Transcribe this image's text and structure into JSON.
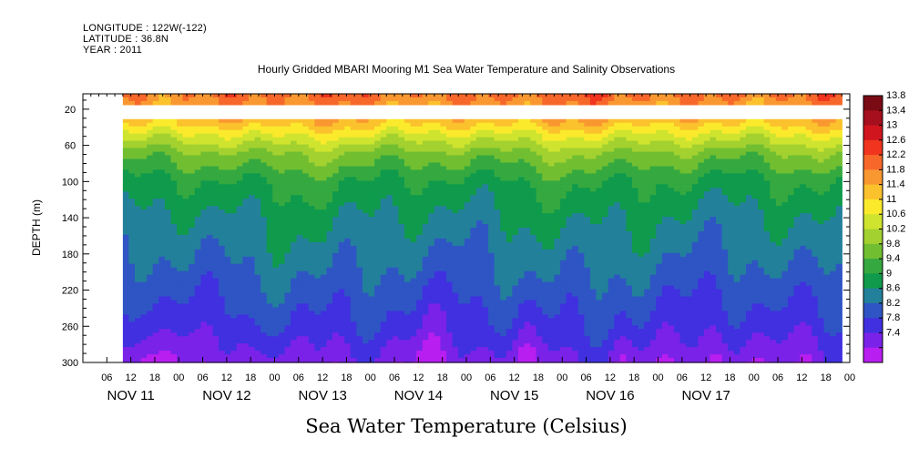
{
  "header": {
    "longitude": "LONGITUDE : 122W(-122)",
    "latitude": "LATITUDE : 36.8N",
    "year": "YEAR : 2011"
  },
  "chart_data": {
    "type": "heatmap",
    "title": "Hourly Gridded MBARI Mooring M1 Sea Water Temperature and Salinity Observations",
    "xlabel": "Sea Water Temperature (Celsius)",
    "ylabel": "DEPTH (m)",
    "y_ticks": [
      "20",
      "60",
      "100",
      "140",
      "180",
      "220",
      "260",
      "300"
    ],
    "y_tick_values": [
      20,
      60,
      100,
      140,
      180,
      220,
      260,
      300
    ],
    "ylim": [
      300,
      3
    ],
    "x_hour_ticks": [
      "06",
      "12",
      "18",
      "00",
      "06",
      "12",
      "18",
      "00",
      "06",
      "12",
      "18",
      "00",
      "06",
      "12",
      "18",
      "00",
      "06",
      "12",
      "18",
      "00",
      "06",
      "12",
      "18",
      "00",
      "06",
      "12",
      "18",
      "00",
      "06",
      "12",
      "18",
      "00"
    ],
    "x_day_labels": [
      "NOV 11",
      "NOV 12",
      "NOV 13",
      "NOV 14",
      "NOV 15",
      "NOV 16",
      "NOV 17"
    ],
    "x_range_hours_from_nov11_00": [
      0,
      192
    ],
    "data_start_hour": 10,
    "data_end_hour": 190,
    "depth_gap_m": [
      13,
      33
    ],
    "colorbar": {
      "levels": [
        "13.8",
        "13.4",
        "13",
        "12.6",
        "12.2",
        "11.8",
        "11.4",
        "11",
        "10.6",
        "10.2",
        "9.8",
        "9.4",
        "9",
        "8.6",
        "8.2",
        "7.8",
        "7.4"
      ],
      "colors": [
        "#7a0a14",
        "#a50f1e",
        "#d0151e",
        "#f0341e",
        "#f7672a",
        "#f99830",
        "#fbc22d",
        "#fbea2c",
        "#cfe42e",
        "#a3d12f",
        "#71bf31",
        "#35a940",
        "#0f9a4c",
        "#22809a",
        "#2f55c4",
        "#4030e0",
        "#7a22e8",
        "#b81ef0"
      ]
    },
    "depth_profile": [
      {
        "depth": 5,
        "temp": 12.3
      },
      {
        "depth": 35,
        "temp": 11.6
      },
      {
        "depth": 50,
        "temp": 10.9
      },
      {
        "depth": 70,
        "temp": 10.1
      },
      {
        "depth": 100,
        "temp": 9.4
      },
      {
        "depth": 140,
        "temp": 9.0
      },
      {
        "depth": 180,
        "temp": 8.7
      },
      {
        "depth": 220,
        "temp": 8.4
      },
      {
        "depth": 260,
        "temp": 8.1
      },
      {
        "depth": 300,
        "temp": 7.6
      }
    ]
  }
}
